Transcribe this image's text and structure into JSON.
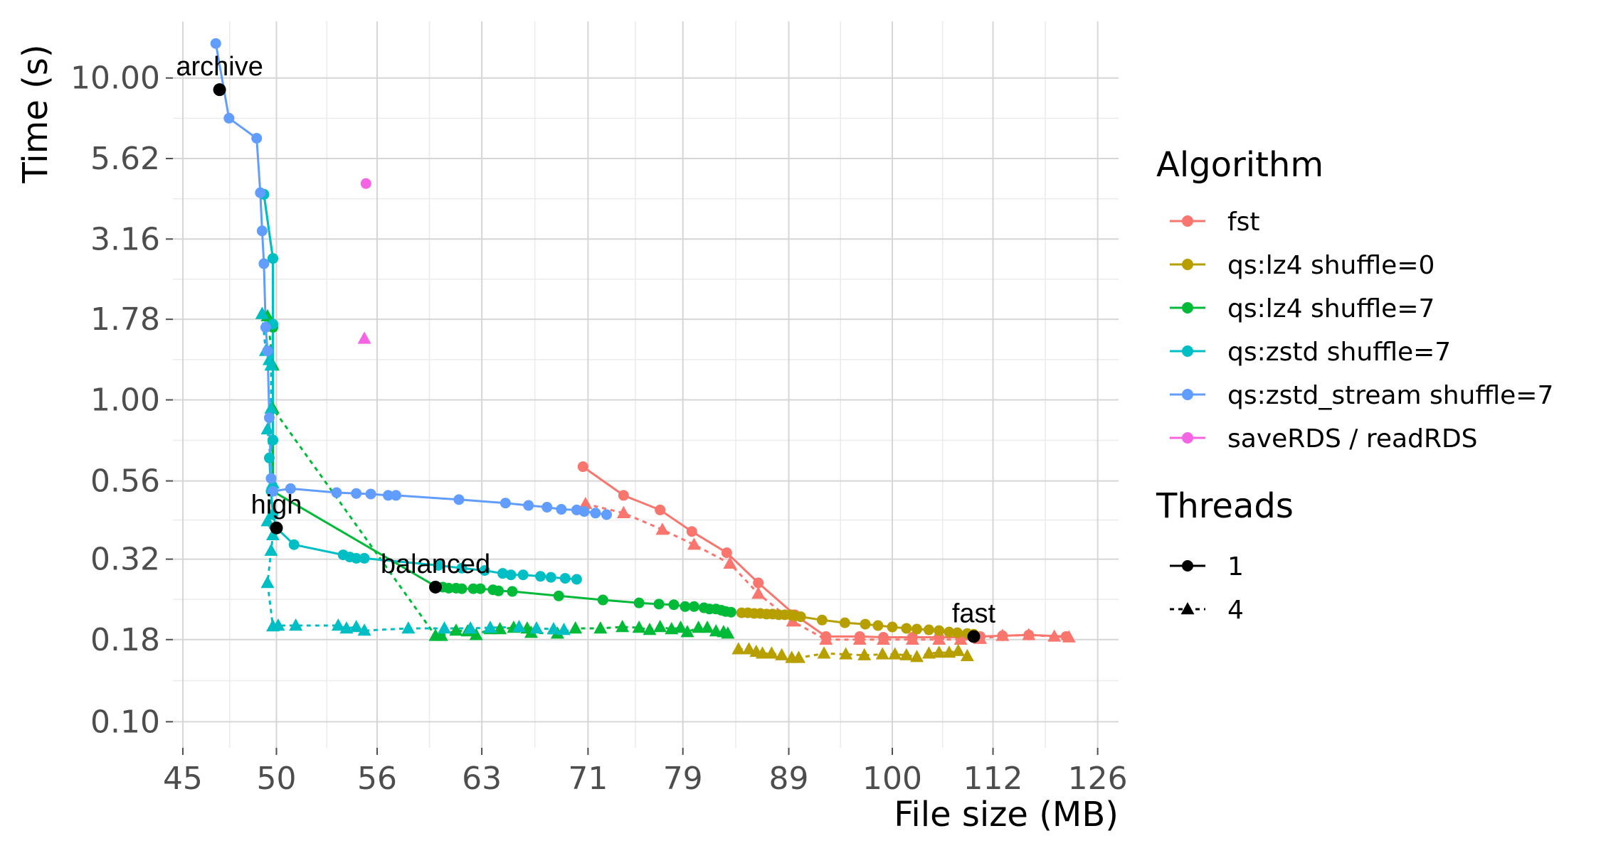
{
  "chart_data": {
    "type": "scatter",
    "xlabel": "File size (MB)",
    "ylabel": "Time (s)",
    "x_scale": "log",
    "y_scale": "log",
    "xlim": [
      44.5,
      129
    ],
    "ylim": [
      0.083,
      15
    ],
    "x_ticks": [
      45,
      50,
      56,
      63,
      71,
      79,
      89,
      100,
      112,
      126
    ],
    "x_tick_labels": [
      "45",
      "50",
      "56",
      "63",
      "71",
      "79",
      "89",
      "100",
      "112",
      "126"
    ],
    "y_ticks": [
      10.0,
      5.62,
      3.16,
      1.78,
      1.0,
      0.56,
      0.32,
      0.18,
      0.1
    ],
    "y_tick_labels": [
      "10.00",
      "5.62",
      "3.16",
      "1.78",
      "1.00",
      "0.56",
      "0.32",
      "0.18",
      "0.10"
    ],
    "grid": true,
    "legend": {
      "placement": "right",
      "algorithm_title": "Algorithm",
      "threads_title": "Threads",
      "threads": [
        {
          "label": "1",
          "marker": "circle",
          "line": "solid"
        },
        {
          "label": "4",
          "marker": "triangle",
          "line": "dashed"
        }
      ]
    },
    "series": [
      {
        "name": "fst",
        "color": "#F8766D",
        "threads": "1",
        "points": [
          [
            70.6,
            0.62
          ],
          [
            73.9,
            0.505
          ],
          [
            77.0,
            0.455
          ],
          [
            79.8,
            0.39
          ],
          [
            83.0,
            0.335
          ],
          [
            86.0,
            0.27
          ],
          [
            89.6,
            0.215
          ],
          [
            92.8,
            0.184
          ],
          [
            96.4,
            0.184
          ],
          [
            99.0,
            0.183
          ],
          [
            102.3,
            0.183
          ],
          [
            105.4,
            0.183
          ],
          [
            108.0,
            0.183
          ],
          [
            110.4,
            0.184
          ],
          [
            113.2,
            0.185
          ],
          [
            116.6,
            0.186
          ],
          [
            121.6,
            0.184
          ]
        ]
      },
      {
        "name": "fst",
        "color": "#F8766D",
        "threads": "4",
        "points": [
          [
            70.8,
            0.475
          ],
          [
            73.9,
            0.445
          ],
          [
            77.2,
            0.395
          ],
          [
            80.0,
            0.355
          ],
          [
            83.3,
            0.31
          ],
          [
            86.0,
            0.25
          ],
          [
            89.4,
            0.205
          ],
          [
            92.8,
            0.18
          ],
          [
            96.4,
            0.18
          ],
          [
            99.0,
            0.18
          ],
          [
            102.3,
            0.18
          ],
          [
            105.4,
            0.18
          ],
          [
            108.0,
            0.18
          ],
          [
            110.4,
            0.181
          ],
          [
            113.2,
            0.185
          ],
          [
            116.6,
            0.186
          ],
          [
            120.0,
            0.184
          ],
          [
            122.0,
            0.183
          ]
        ]
      },
      {
        "name": "qs:lz4 shuffle=0",
        "color": "#B79F00",
        "threads": "1",
        "points": [
          [
            84.4,
            0.218
          ],
          [
            85.0,
            0.218
          ],
          [
            85.6,
            0.217
          ],
          [
            86.2,
            0.217
          ],
          [
            86.8,
            0.216
          ],
          [
            87.4,
            0.216
          ],
          [
            88.0,
            0.215
          ],
          [
            88.6,
            0.215
          ],
          [
            89.2,
            0.215
          ],
          [
            89.6,
            0.213
          ],
          [
            90.2,
            0.212
          ],
          [
            92.4,
            0.207
          ],
          [
            94.8,
            0.203
          ],
          [
            97.0,
            0.201
          ],
          [
            98.4,
            0.199
          ],
          [
            100.0,
            0.197
          ],
          [
            101.6,
            0.195
          ],
          [
            102.8,
            0.194
          ],
          [
            104.2,
            0.193
          ],
          [
            105.4,
            0.192
          ],
          [
            106.6,
            0.19
          ],
          [
            107.6,
            0.189
          ],
          [
            108.8,
            0.188
          ],
          [
            109.6,
            0.187
          ]
        ]
      },
      {
        "name": "qs:lz4 shuffle=0",
        "color": "#B79F00",
        "threads": "4",
        "points": [
          [
            84.1,
            0.168
          ],
          [
            85.1,
            0.168
          ],
          [
            85.8,
            0.165
          ],
          [
            86.4,
            0.163
          ],
          [
            87.3,
            0.163
          ],
          [
            88.3,
            0.161
          ],
          [
            89.3,
            0.158
          ],
          [
            90.0,
            0.158
          ],
          [
            92.6,
            0.163
          ],
          [
            94.9,
            0.162
          ],
          [
            96.9,
            0.161
          ],
          [
            98.9,
            0.162
          ],
          [
            100.3,
            0.162
          ],
          [
            101.6,
            0.161
          ],
          [
            102.8,
            0.159
          ],
          [
            104.2,
            0.163
          ],
          [
            105.4,
            0.164
          ],
          [
            106.6,
            0.164
          ],
          [
            107.7,
            0.166
          ],
          [
            108.8,
            0.16
          ]
        ]
      },
      {
        "name": "qs:lz4 shuffle=7",
        "color": "#00BA38",
        "threads": "1",
        "points": [
          [
            49.3,
            4.35
          ],
          [
            49.8,
            2.75
          ],
          [
            49.8,
            1.72
          ],
          [
            49.8,
            1.68
          ],
          [
            49.8,
            0.75
          ],
          [
            49.8,
            0.52
          ],
          [
            59.9,
            0.262
          ],
          [
            60.3,
            0.262
          ],
          [
            60.7,
            0.26
          ],
          [
            61.2,
            0.26
          ],
          [
            61.6,
            0.259
          ],
          [
            62.4,
            0.259
          ],
          [
            62.9,
            0.259
          ],
          [
            63.8,
            0.257
          ],
          [
            64.2,
            0.255
          ],
          [
            65.2,
            0.254
          ],
          [
            68.7,
            0.246
          ],
          [
            72.2,
            0.239
          ],
          [
            75.2,
            0.234
          ],
          [
            76.9,
            0.232
          ],
          [
            78.2,
            0.231
          ],
          [
            79.2,
            0.228
          ],
          [
            80.0,
            0.228
          ],
          [
            80.9,
            0.226
          ],
          [
            81.4,
            0.224
          ],
          [
            82.0,
            0.224
          ],
          [
            82.5,
            0.222
          ],
          [
            82.9,
            0.22
          ],
          [
            83.4,
            0.219
          ]
        ]
      },
      {
        "name": "qs:lz4 shuffle=7",
        "color": "#00BA38",
        "threads": "4",
        "points": [
          [
            49.2,
            1.85
          ],
          [
            49.5,
            1.82
          ],
          [
            49.8,
            1.28
          ],
          [
            49.8,
            0.94
          ],
          [
            59.8,
            0.185
          ],
          [
            60.2,
            0.185
          ],
          [
            61.2,
            0.192
          ],
          [
            62.0,
            0.191
          ],
          [
            62.6,
            0.186
          ],
          [
            63.6,
            0.194
          ],
          [
            64.3,
            0.194
          ],
          [
            65.3,
            0.196
          ],
          [
            66.3,
            0.195
          ],
          [
            66.6,
            0.189
          ],
          [
            68.6,
            0.188
          ],
          [
            70.0,
            0.195
          ],
          [
            72.0,
            0.195
          ],
          [
            73.8,
            0.197
          ],
          [
            75.2,
            0.196
          ],
          [
            76.1,
            0.193
          ],
          [
            77.0,
            0.197
          ],
          [
            78.0,
            0.194
          ],
          [
            78.8,
            0.196
          ],
          [
            79.4,
            0.19
          ],
          [
            80.4,
            0.196
          ],
          [
            81.2,
            0.196
          ],
          [
            82.0,
            0.191
          ],
          [
            82.7,
            0.19
          ],
          [
            83.1,
            0.188
          ]
        ]
      },
      {
        "name": "qs:zstd shuffle=7",
        "color": "#00BFC4",
        "threads": "1",
        "points": [
          [
            49.3,
            4.35
          ],
          [
            49.8,
            2.75
          ],
          [
            49.8,
            1.72
          ],
          [
            49.8,
            0.75
          ],
          [
            49.6,
            0.66
          ],
          [
            49.7,
            0.52
          ],
          [
            49.8,
            0.44
          ],
          [
            50.0,
            0.4
          ],
          [
            51.0,
            0.355
          ],
          [
            53.9,
            0.33
          ],
          [
            54.3,
            0.325
          ],
          [
            54.7,
            0.322
          ],
          [
            55.2,
            0.322
          ],
          [
            60.0,
            0.306
          ],
          [
            61.6,
            0.3
          ],
          [
            63.2,
            0.295
          ],
          [
            64.5,
            0.289
          ],
          [
            65.1,
            0.286
          ],
          [
            66.0,
            0.286
          ],
          [
            67.3,
            0.283
          ],
          [
            68.1,
            0.281
          ],
          [
            69.2,
            0.279
          ],
          [
            70.1,
            0.277
          ]
        ]
      },
      {
        "name": "qs:zstd shuffle=7",
        "color": "#00BFC4",
        "threads": "4",
        "points": [
          [
            49.2,
            1.85
          ],
          [
            49.4,
            1.42
          ],
          [
            49.6,
            1.33
          ],
          [
            49.7,
            1.28
          ],
          [
            49.7,
            0.94
          ],
          [
            49.5,
            0.81
          ],
          [
            49.8,
            0.55
          ],
          [
            49.5,
            0.42
          ],
          [
            49.8,
            0.38
          ],
          [
            49.7,
            0.34
          ],
          [
            49.5,
            0.27
          ],
          [
            49.8,
            0.198
          ],
          [
            50.1,
            0.199
          ],
          [
            51.1,
            0.199
          ],
          [
            53.6,
            0.199
          ],
          [
            54.1,
            0.195
          ],
          [
            54.7,
            0.197
          ],
          [
            55.2,
            0.192
          ],
          [
            58.0,
            0.195
          ],
          [
            60.4,
            0.195
          ],
          [
            62.2,
            0.195
          ],
          [
            63.6,
            0.196
          ],
          [
            65.7,
            0.197
          ],
          [
            67.0,
            0.195
          ],
          [
            68.3,
            0.194
          ],
          [
            69.1,
            0.193
          ]
        ]
      },
      {
        "name": "qs:zstd_stream shuffle=7",
        "color": "#619CFF",
        "threads": "1",
        "points": [
          [
            46.7,
            12.8
          ],
          [
            47.4,
            7.5
          ],
          [
            48.9,
            6.5
          ],
          [
            49.1,
            4.4
          ],
          [
            49.2,
            3.35
          ],
          [
            49.3,
            2.65
          ],
          [
            49.4,
            1.68
          ],
          [
            49.5,
            1.42
          ],
          [
            49.6,
            0.88
          ],
          [
            49.7,
            0.57
          ],
          [
            49.8,
            0.52
          ],
          [
            50.8,
            0.53
          ],
          [
            53.5,
            0.515
          ],
          [
            54.7,
            0.512
          ],
          [
            55.6,
            0.51
          ],
          [
            56.7,
            0.505
          ],
          [
            57.2,
            0.505
          ],
          [
            61.4,
            0.49
          ],
          [
            64.7,
            0.478
          ],
          [
            66.4,
            0.47
          ],
          [
            67.8,
            0.464
          ],
          [
            68.9,
            0.457
          ],
          [
            70.1,
            0.455
          ],
          [
            70.7,
            0.45
          ],
          [
            71.6,
            0.445
          ],
          [
            72.5,
            0.44
          ]
        ]
      },
      {
        "name": "saveRDS / readRDS",
        "color": "#F564E3",
        "threads": "1",
        "points": [
          [
            55.3,
            4.7
          ]
        ]
      },
      {
        "name": "saveRDS / readRDS",
        "color": "#F564E3",
        "threads": "4",
        "points": [
          [
            55.2,
            1.55
          ]
        ]
      }
    ],
    "annotations": [
      {
        "text": "archive",
        "x": 46.9,
        "y": 9.2
      },
      {
        "text": "high",
        "x": 50.0,
        "y": 0.4
      },
      {
        "text": "balanced",
        "x": 59.8,
        "y": 0.262
      },
      {
        "text": "fast",
        "x": 109.6,
        "y": 0.184
      }
    ]
  }
}
